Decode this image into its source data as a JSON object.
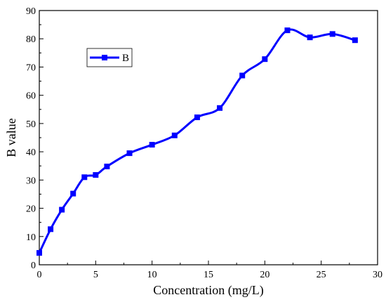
{
  "chart_data": {
    "type": "line",
    "xlabel": "Concentration (mg/L)",
    "ylabel": "B value",
    "xlim": [
      0,
      30
    ],
    "ylim": [
      0,
      90
    ],
    "xticks": [
      0,
      5,
      10,
      15,
      20,
      25,
      30
    ],
    "yticks": [
      0,
      10,
      20,
      30,
      40,
      50,
      60,
      70,
      80,
      90
    ],
    "grid": false,
    "legend_position": "top-left",
    "series": [
      {
        "name": "B",
        "color": "#0000ff",
        "marker": "square",
        "smooth": true,
        "points": [
          {
            "x": 0,
            "y": 4.2
          },
          {
            "x": 1,
            "y": 12.6
          },
          {
            "x": 2,
            "y": 19.5
          },
          {
            "x": 3,
            "y": 25.2
          },
          {
            "x": 4,
            "y": 31.0
          },
          {
            "x": 5,
            "y": 31.8
          },
          {
            "x": 6,
            "y": 34.8
          },
          {
            "x": 8,
            "y": 39.5
          },
          {
            "x": 10,
            "y": 42.5
          },
          {
            "x": 12,
            "y": 45.8
          },
          {
            "x": 14,
            "y": 52.2
          },
          {
            "x": 16,
            "y": 55.5
          },
          {
            "x": 18,
            "y": 67.0
          },
          {
            "x": 20,
            "y": 72.8
          },
          {
            "x": 22,
            "y": 83.0
          },
          {
            "x": 24,
            "y": 80.5
          },
          {
            "x": 26,
            "y": 81.7
          },
          {
            "x": 28,
            "y": 79.5
          }
        ]
      }
    ]
  }
}
